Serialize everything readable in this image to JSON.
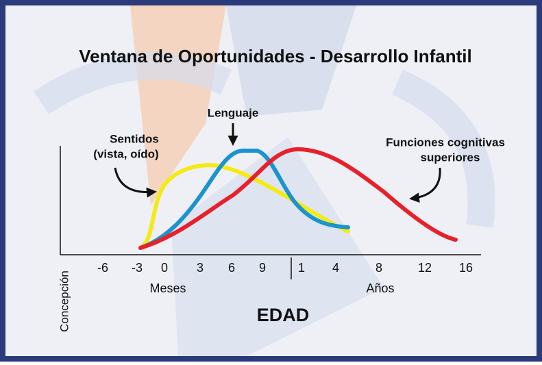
{
  "title": "Ventana de Oportunidades - Desarrollo Infantil",
  "annotations": {
    "senses": [
      "Sentidos",
      "(vista, oído)"
    ],
    "language": "Lenguaje",
    "cognitive": [
      "Funciones cognitivas",
      "superiores"
    ]
  },
  "x_axis": {
    "ticks": [
      "-6",
      "-3",
      "0",
      "3",
      "6",
      "9",
      "1",
      "4",
      "8",
      "12",
      "16"
    ],
    "months_label": "Meses",
    "years_label": "Años",
    "title": "EDAD",
    "origin_label": "Concepción"
  }
}
